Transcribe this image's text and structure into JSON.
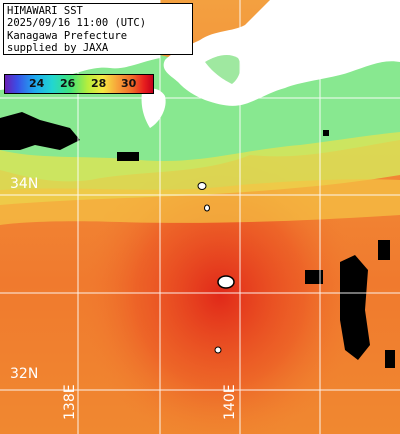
{
  "info": {
    "line1": "HIMAWARI SST",
    "line2": "2025/09/16 11:00 (UTC)",
    "line3": "Kanagawa Prefecture",
    "line4": "supplied by JAXA"
  },
  "legend": {
    "ticks": [
      "24",
      "26",
      "28",
      "30"
    ],
    "unit_range_c": [
      23,
      31
    ]
  },
  "grid": {
    "lat_labels": [
      "34N",
      "32N"
    ],
    "lon_labels": [
      "138E",
      "140E"
    ]
  },
  "colors": {
    "land": "#ffffff",
    "cloud_mask": "#000000",
    "grid_line": "#ffffff",
    "sst_warm": "#f07a2e",
    "sst_hot": "#e8321e",
    "sst_cool": "#7cf07c"
  }
}
